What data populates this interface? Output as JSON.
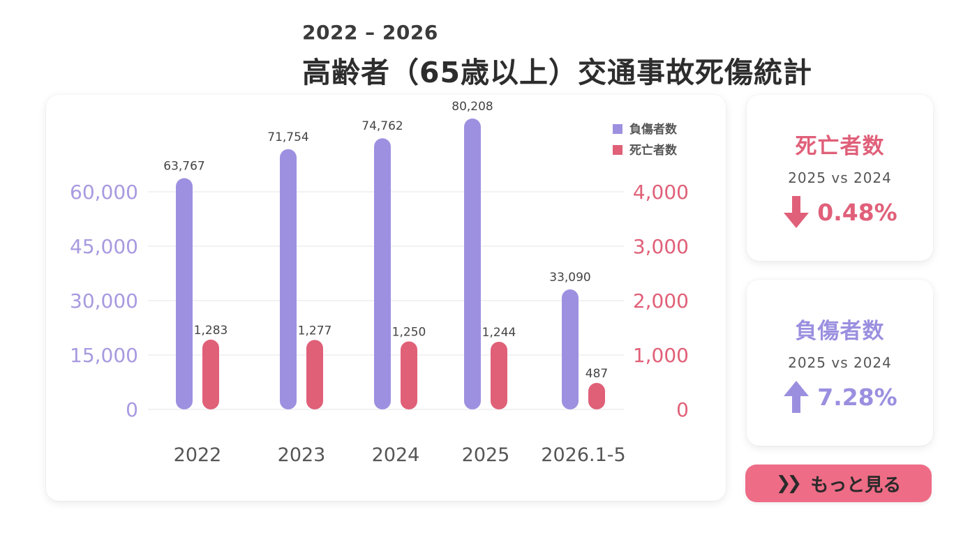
{
  "header": {
    "period": "2022 – 2026",
    "title": "高齢者（65歳以上）交通事故死傷統計"
  },
  "chart_data": {
    "type": "bar",
    "categories": [
      "2022",
      "2023",
      "2024",
      "2025",
      "2026.1-5"
    ],
    "series": [
      {
        "name": "負傷者数",
        "axis": "left",
        "color": "#9e90e0",
        "values": [
          63767,
          71754,
          74762,
          80208,
          33090
        ],
        "labels": [
          "63,767",
          "71,754",
          "74,762",
          "80,208",
          "33,090"
        ]
      },
      {
        "name": "死亡者数",
        "axis": "right",
        "color": "#e06078",
        "values": [
          1283,
          1277,
          1250,
          1244,
          487
        ],
        "labels": [
          "1,283",
          "1,277",
          "1,250",
          "1,244",
          "487"
        ]
      }
    ],
    "y_left": {
      "ticks": [
        0,
        15000,
        30000,
        45000,
        60000
      ],
      "tick_labels": [
        "0",
        "15,000",
        "30,000",
        "45,000",
        "60,000"
      ],
      "color": "#a89ae0"
    },
    "y_right": {
      "ticks": [
        0,
        1000,
        2000,
        3000,
        4000
      ],
      "tick_labels": [
        "0",
        "1,000",
        "2,000",
        "3,000",
        "4,000"
      ],
      "color": "#e06078"
    },
    "grid": true,
    "legend": "top-right"
  },
  "stats": {
    "deaths": {
      "title": "死亡者数",
      "compare": "2025 vs 2024",
      "change": "0.48%",
      "direction": "down",
      "color": "#e0607a"
    },
    "injuries": {
      "title": "負傷者数",
      "compare": "2025 vs 2024",
      "change": "7.28%",
      "direction": "up",
      "color": "#9a8fdf"
    }
  },
  "more_button": {
    "label": "もっと見る",
    "icon": "double-chevron-right-icon"
  }
}
